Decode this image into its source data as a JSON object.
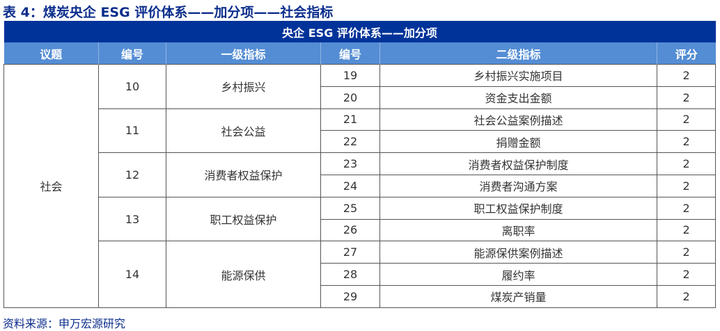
{
  "title": "表 4：煤炭央企 ESG 评价体系——加分项——社会指标",
  "band": "央企 ESG 评价体系——加分项",
  "headers": [
    "议题",
    "编号",
    "一级指标",
    "编号",
    "二级指标",
    "评分"
  ],
  "topic": "社会",
  "groups": [
    {
      "no": "10",
      "name": "乡村振兴",
      "items": [
        [
          "19",
          "乡村振兴实施项目",
          "2"
        ],
        [
          "20",
          "资金支出金额",
          "2"
        ]
      ]
    },
    {
      "no": "11",
      "name": "社会公益",
      "items": [
        [
          "21",
          "社会公益案例描述",
          "2"
        ],
        [
          "22",
          "捐赠金额",
          "2"
        ]
      ]
    },
    {
      "no": "12",
      "name": "消费者权益保护",
      "items": [
        [
          "23",
          "消费者权益保护制度",
          "2"
        ],
        [
          "24",
          "消费者沟通方案",
          "2"
        ]
      ]
    },
    {
      "no": "13",
      "name": "职工权益保护",
      "items": [
        [
          "25",
          "职工权益保护制度",
          "2"
        ],
        [
          "26",
          "离职率",
          "2"
        ]
      ]
    },
    {
      "no": "14",
      "name": "能源保供",
      "items": [
        [
          "27",
          "能源保供案例描述",
          "2"
        ],
        [
          "28",
          "履约率",
          "2"
        ],
        [
          "29",
          "煤炭产销量",
          "2"
        ]
      ]
    }
  ],
  "source": "资料来源：申万宏源研究"
}
